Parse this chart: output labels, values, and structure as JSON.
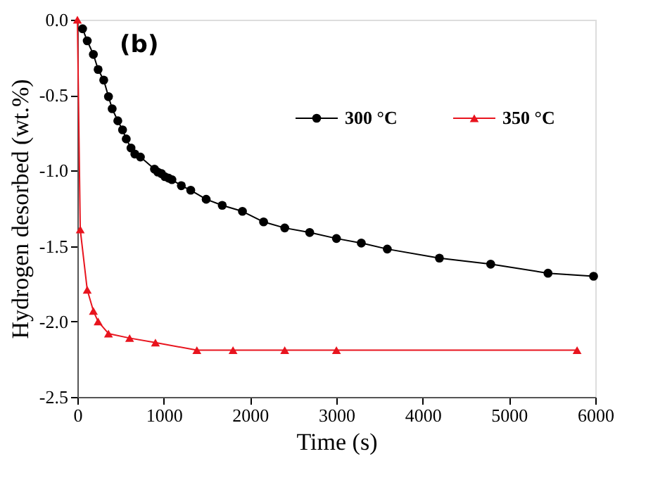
{
  "chart_data": {
    "type": "line",
    "xlabel": "Time (s)",
    "ylabel": "Hydrogen desorbed (wt.%)",
    "annotations": [
      "(b)"
    ],
    "xlim": [
      0,
      6000
    ],
    "xticks": [
      0,
      1000,
      2000,
      3000,
      4000,
      5000,
      6000
    ],
    "ylim": [
      -2.5,
      0
    ],
    "yticks": [
      {
        "value": -2.5,
        "label": "-2.5"
      },
      {
        "value": -2,
        "label": "-2.0"
      },
      {
        "value": -1.5,
        "label": "-1.5"
      },
      {
        "value": -1,
        "label": "-1.0"
      },
      {
        "value": -0.5,
        "label": "-0.5"
      },
      {
        "value": 0,
        "label": "0.0"
      }
    ],
    "grid": false,
    "legend": "top right",
    "line_style": "solid",
    "series": [
      {
        "name": "300 °C",
        "color": "#000000",
        "marker": "circle",
        "x": [
          60,
          114,
          185,
          240,
          305,
          360,
          403,
          468,
          523,
          566,
          621,
          665,
          730,
          893,
          931,
          975,
          1013,
          1057,
          1095,
          1204,
          1313,
          1492,
          1678,
          1912,
          2157,
          2402,
          2691,
          3001,
          3289,
          3590,
          4194,
          4788,
          5452,
          5980
        ],
        "values": [
          -0.06,
          -0.14,
          -0.23,
          -0.33,
          -0.4,
          -0.51,
          -0.59,
          -0.67,
          -0.73,
          -0.79,
          -0.85,
          -0.89,
          -0.91,
          -0.99,
          -1.01,
          -1.02,
          -1.04,
          -1.05,
          -1.06,
          -1.1,
          -1.13,
          -1.19,
          -1.23,
          -1.27,
          -1.34,
          -1.38,
          -1.41,
          -1.45,
          -1.48,
          -1.52,
          -1.58,
          -1.62,
          -1.68,
          -1.7
        ]
      },
      {
        "name": "350 °C",
        "color": "#e8141e",
        "marker": "triangle",
        "x": [
          0,
          33,
          114,
          185,
          240,
          360,
          605,
          904,
          1384,
          1803,
          2402,
          3001,
          5789
        ],
        "values": [
          0,
          -1.39,
          -1.79,
          -1.93,
          -2.0,
          -2.08,
          -2.11,
          -2.14,
          -2.19,
          -2.19,
          -2.19,
          -2.19,
          -2.19
        ]
      }
    ]
  }
}
